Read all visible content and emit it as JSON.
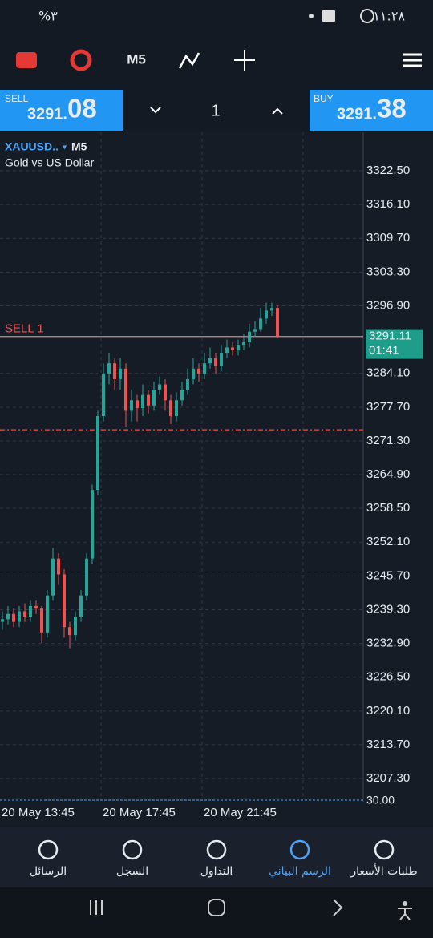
{
  "status_bar": {
    "battery": "%٣",
    "time": "١١:٢٨"
  },
  "toolbar": {
    "timeframe": "M5"
  },
  "quote_bar": {
    "sell_label": "SELL",
    "sell_price_main": "3291.",
    "sell_price_big": "08",
    "lot": "1",
    "buy_label": "BUY",
    "buy_price_main": "3291.",
    "buy_price_big": "38"
  },
  "chart": {
    "type": "candlestick",
    "symbol": "XAUUSD..",
    "symbol_arrow": "▾",
    "timeframe": "M5",
    "description": "Gold vs US Dollar",
    "position_label": "SELL 1",
    "position_line": 3291.08,
    "stop_level": 3273.4,
    "current_price": 3291.11,
    "countdown": "01:41",
    "ylim": [
      3202.9,
      3329.8
    ],
    "yticks": [
      {
        "value": 3322.5,
        "label": "3322.50"
      },
      {
        "value": 3316.1,
        "label": "3316.10"
      },
      {
        "value": 3309.7,
        "label": "3309.70"
      },
      {
        "value": 3303.3,
        "label": "3303.30"
      },
      {
        "value": 3296.9,
        "label": "3296.90"
      },
      {
        "value": 3284.1,
        "label": "3284.10"
      },
      {
        "value": 3277.7,
        "label": "3277.70"
      },
      {
        "value": 3271.3,
        "label": "3271.30"
      },
      {
        "value": 3264.9,
        "label": "3264.90"
      },
      {
        "value": 3258.5,
        "label": "3258.50"
      },
      {
        "value": 3252.1,
        "label": "3252.10"
      },
      {
        "value": 3245.7,
        "label": "3245.70"
      },
      {
        "value": 3239.3,
        "label": "3239.30"
      },
      {
        "value": 3232.9,
        "label": "3232.90"
      },
      {
        "value": 3226.5,
        "label": "3226.50"
      },
      {
        "value": 3220.1,
        "label": "3220.10"
      },
      {
        "value": 3213.7,
        "label": "3213.70"
      },
      {
        "value": 3207.3,
        "label": "3207.30"
      }
    ],
    "x_labels": [
      "20 May 13:45",
      "20 May 17:45",
      "20 May 21:45"
    ],
    "indicator_label": "30.00",
    "up_color": "#26a69a",
    "down_color": "#ef5350",
    "candles": [
      [
        3237,
        3239,
        3235.5,
        3237.5
      ],
      [
        3237.5,
        3240,
        3236.5,
        3238.5
      ],
      [
        3238.5,
        3239.5,
        3236,
        3237
      ],
      [
        3237,
        3240,
        3236,
        3239
      ],
      [
        3239,
        3240.5,
        3237,
        3238
      ],
      [
        3238,
        3241,
        3237,
        3240
      ],
      [
        3240,
        3241,
        3238.5,
        3239.5
      ],
      [
        3239.5,
        3240,
        3233,
        3235
      ],
      [
        3235,
        3243,
        3234,
        3242
      ],
      [
        3242,
        3251,
        3241,
        3249
      ],
      [
        3249,
        3250,
        3244,
        3246
      ],
      [
        3246,
        3247,
        3234,
        3236
      ],
      [
        3236,
        3237,
        3232,
        3234.5
      ],
      [
        3234.5,
        3239,
        3233.5,
        3238
      ],
      [
        3238,
        3243,
        3237,
        3242
      ],
      [
        3242,
        3250,
        3241,
        3249
      ],
      [
        3249,
        3263,
        3248,
        3262
      ],
      [
        3262,
        3277,
        3261,
        3276
      ],
      [
        3276,
        3286,
        3275,
        3284
      ],
      [
        3284,
        3288,
        3282,
        3286
      ],
      [
        3286,
        3287,
        3281,
        3283
      ],
      [
        3283,
        3287,
        3281,
        3285
      ],
      [
        3285,
        3286,
        3274,
        3277
      ],
      [
        3277,
        3281,
        3275,
        3279
      ],
      [
        3279,
        3280,
        3275,
        3277.5
      ],
      [
        3277.5,
        3282,
        3276,
        3280
      ],
      [
        3280,
        3281,
        3276.5,
        3278
      ],
      [
        3278,
        3282.5,
        3277,
        3281
      ],
      [
        3281,
        3283.5,
        3280,
        3282
      ],
      [
        3282,
        3283,
        3277,
        3279
      ],
      [
        3279,
        3280,
        3274.5,
        3276
      ],
      [
        3276,
        3280.5,
        3275,
        3279
      ],
      [
        3279,
        3282.5,
        3278,
        3281
      ],
      [
        3281,
        3285,
        3280,
        3283
      ],
      [
        3283,
        3287,
        3282,
        3285
      ],
      [
        3285,
        3286,
        3282.5,
        3284
      ],
      [
        3284,
        3288,
        3283,
        3286
      ],
      [
        3286,
        3289,
        3285,
        3287
      ],
      [
        3287,
        3288,
        3284,
        3285.5
      ],
      [
        3285.5,
        3289.5,
        3284.5,
        3288
      ],
      [
        3288,
        3290.5,
        3287,
        3289
      ],
      [
        3289,
        3290,
        3287.5,
        3288.5
      ],
      [
        3288.5,
        3290.5,
        3287.5,
        3289.5
      ],
      [
        3289.5,
        3291.5,
        3288.5,
        3290
      ],
      [
        3290,
        3293.5,
        3289,
        3292
      ],
      [
        3292,
        3294,
        3291,
        3292.5
      ],
      [
        3292.5,
        3296.5,
        3292,
        3294.5
      ],
      [
        3294.5,
        3297.5,
        3293.5,
        3296
      ],
      [
        3296,
        3297.5,
        3295,
        3296.5
      ],
      [
        3296.5,
        3297,
        3290.8,
        3291.1
      ]
    ]
  },
  "nav": {
    "tabs": [
      "الرسائل",
      "السجل",
      "التداول",
      "الرسم البياني",
      "طلبات الأسعار"
    ],
    "active": 3
  }
}
